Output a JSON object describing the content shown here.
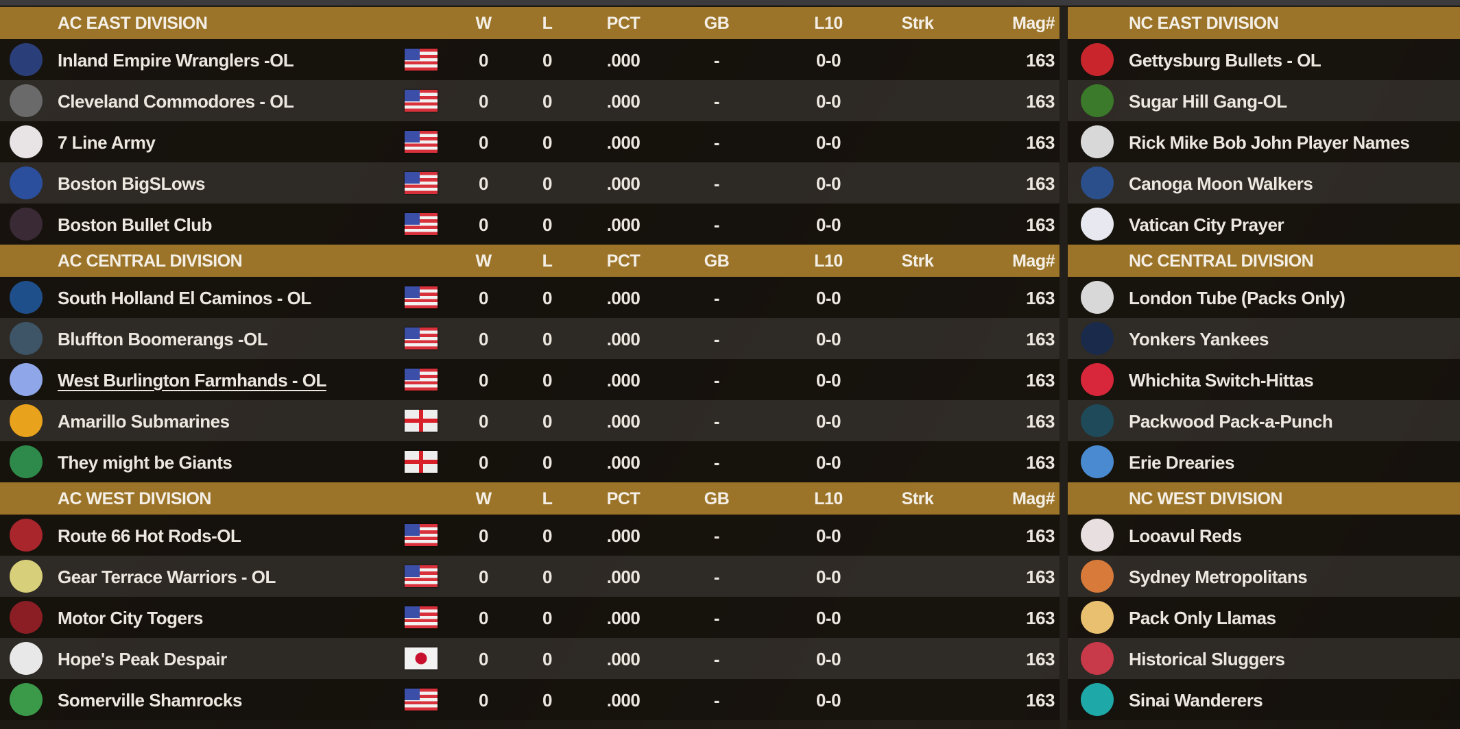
{
  "columns": {
    "w": "W",
    "l": "L",
    "pct": "PCT",
    "gb": "GB",
    "l10": "L10",
    "strk": "Strk",
    "mag": "Mag#"
  },
  "colors": {
    "header": "#9b7429",
    "row_dark": "#14100b",
    "row_light": "#34302c"
  },
  "left": [
    {
      "title": "AC EAST DIVISION",
      "teams": [
        {
          "name": "Inland Empire Wranglers -OL",
          "flag": "us",
          "logo_color": "#2a3f7a",
          "w": "0",
          "l": "0",
          "pct": ".000",
          "gb": "-",
          "l10": "0-0",
          "strk": "",
          "mag": "163"
        },
        {
          "name": "Cleveland Commodores - OL",
          "flag": "us",
          "logo_color": "#6a6a6a",
          "w": "0",
          "l": "0",
          "pct": ".000",
          "gb": "-",
          "l10": "0-0",
          "strk": "",
          "mag": "163"
        },
        {
          "name": "7 Line Army",
          "flag": "us",
          "logo_color": "#e8e4e6",
          "w": "0",
          "l": "0",
          "pct": ".000",
          "gb": "-",
          "l10": "0-0",
          "strk": "",
          "mag": "163"
        },
        {
          "name": "Boston BigSLows",
          "flag": "us",
          "logo_color": "#2b4f9c",
          "w": "0",
          "l": "0",
          "pct": ".000",
          "gb": "-",
          "l10": "0-0",
          "strk": "",
          "mag": "163"
        },
        {
          "name": "Boston Bullet Club",
          "flag": "us",
          "logo_color": "#3a2a36",
          "w": "0",
          "l": "0",
          "pct": ".000",
          "gb": "-",
          "l10": "0-0",
          "strk": "",
          "mag": "163"
        }
      ]
    },
    {
      "title": "AC CENTRAL DIVISION",
      "teams": [
        {
          "name": "South Holland El Caminos - OL",
          "flag": "us",
          "logo_color": "#1f4f8a",
          "w": "0",
          "l": "0",
          "pct": ".000",
          "gb": "-",
          "l10": "0-0",
          "strk": "",
          "mag": "163"
        },
        {
          "name": "Bluffton Boomerangs -OL",
          "flag": "us",
          "logo_color": "#3d5566",
          "w": "0",
          "l": "0",
          "pct": ".000",
          "gb": "-",
          "l10": "0-0",
          "strk": "",
          "mag": "163"
        },
        {
          "name": "West Burlington Farmhands - OL",
          "flag": "us",
          "logo_color": "#8fa6e8",
          "underlined": true,
          "w": "0",
          "l": "0",
          "pct": ".000",
          "gb": "-",
          "l10": "0-0",
          "strk": "",
          "mag": "163"
        },
        {
          "name": "Amarillo Submarines",
          "flag": "england",
          "logo_color": "#e8a21c",
          "w": "0",
          "l": "0",
          "pct": ".000",
          "gb": "-",
          "l10": "0-0",
          "strk": "",
          "mag": "163"
        },
        {
          "name": "They might be Giants",
          "flag": "england",
          "logo_color": "#2e8a4a",
          "w": "0",
          "l": "0",
          "pct": ".000",
          "gb": "-",
          "l10": "0-0",
          "strk": "",
          "mag": "163"
        }
      ]
    },
    {
      "title": "AC WEST DIVISION",
      "teams": [
        {
          "name": "Route 66 Hot Rods-OL",
          "flag": "us",
          "logo_color": "#a8262c",
          "w": "0",
          "l": "0",
          "pct": ".000",
          "gb": "-",
          "l10": "0-0",
          "strk": "",
          "mag": "163"
        },
        {
          "name": "Gear Terrace Warriors - OL",
          "flag": "us",
          "logo_color": "#d8cf7a",
          "w": "0",
          "l": "0",
          "pct": ".000",
          "gb": "-",
          "l10": "0-0",
          "strk": "",
          "mag": "163"
        },
        {
          "name": "Motor City Togers",
          "flag": "us",
          "logo_color": "#8a1e24",
          "w": "0",
          "l": "0",
          "pct": ".000",
          "gb": "-",
          "l10": "0-0",
          "strk": "",
          "mag": "163"
        },
        {
          "name": "Hope's Peak Despair",
          "flag": "japan",
          "logo_color": "#e8e8e8",
          "w": "0",
          "l": "0",
          "pct": ".000",
          "gb": "-",
          "l10": "0-0",
          "strk": "",
          "mag": "163"
        },
        {
          "name": "Somerville Shamrocks",
          "flag": "us",
          "logo_color": "#3a9a4a",
          "w": "0",
          "l": "0",
          "pct": ".000",
          "gb": "-",
          "l10": "0-0",
          "strk": "",
          "mag": "163"
        }
      ]
    }
  ],
  "right": [
    {
      "title": "NC EAST DIVISION",
      "teams": [
        {
          "name": "Gettysburg Bullets - OL",
          "logo_color": "#c8262c"
        },
        {
          "name": "Sugar Hill Gang-OL",
          "logo_color": "#3a7a2a"
        },
        {
          "name": "Rick Mike Bob John Player Names",
          "logo_color": "#d8d8d8"
        },
        {
          "name": "Canoga Moon Walkers",
          "logo_color": "#2a4f8a"
        },
        {
          "name": "Vatican City Prayer",
          "logo_color": "#e8e8f0"
        }
      ]
    },
    {
      "title": "NC CENTRAL DIVISION",
      "teams": [
        {
          "name": "London Tube (Packs Only)",
          "logo_color": "#d8d8d8"
        },
        {
          "name": "Yonkers Yankees",
          "logo_color": "#1a2a4a"
        },
        {
          "name": "Whichita Switch-Hittas",
          "logo_color": "#d8263a"
        },
        {
          "name": "Packwood Pack-a-Punch",
          "logo_color": "#1f4a5a"
        },
        {
          "name": "Erie Drearies",
          "logo_color": "#4a8ad0"
        }
      ]
    },
    {
      "title": "NC WEST DIVISION",
      "teams": [
        {
          "name": "Looavul Reds",
          "logo_color": "#e8e0e0"
        },
        {
          "name": "Sydney Metropolitans",
          "logo_color": "#d87a3a"
        },
        {
          "name": "Pack Only Llamas",
          "logo_color": "#e8c070"
        },
        {
          "name": "Historical Sluggers",
          "logo_color": "#c83a4a"
        },
        {
          "name": "Sinai Wanderers",
          "logo_color": "#1fa8a8"
        }
      ]
    }
  ]
}
